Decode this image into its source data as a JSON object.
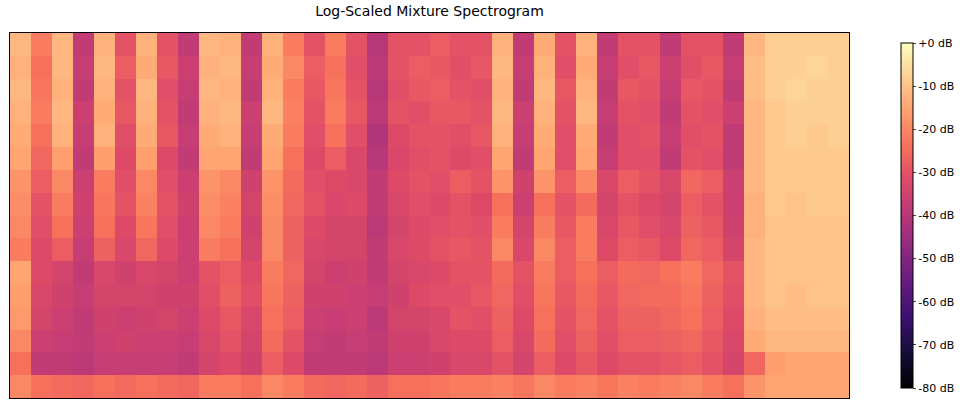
{
  "chart_data": {
    "type": "heatmap",
    "title": "Log-Scaled Mixture Spectrogram",
    "tick_labels": false,
    "grid": false,
    "colorbar_range": [
      -80,
      0
    ],
    "colorbar_ticks": [
      {
        "value": 0,
        "label": "+0 dB"
      },
      {
        "value": -10,
        "label": "-10 dB"
      },
      {
        "value": -20,
        "label": "-20 dB"
      },
      {
        "value": -30,
        "label": "-30 dB"
      },
      {
        "value": -40,
        "label": "-40 dB"
      },
      {
        "value": -50,
        "label": "-50 dB"
      },
      {
        "value": -60,
        "label": "-60 dB"
      },
      {
        "value": -70,
        "label": "-70 dB"
      },
      {
        "value": -80,
        "label": "-80 dB"
      }
    ],
    "cells": [
      [
        -12,
        -22,
        -12,
        -38,
        -13,
        -30,
        -13,
        -30,
        -38,
        -12,
        -13,
        -38,
        -13,
        -22,
        -30,
        -22,
        -30,
        -40,
        -30,
        -30,
        -28,
        -30,
        -30,
        -13,
        -38,
        -14,
        -30,
        -13,
        -38,
        -30,
        -30,
        -38,
        -30,
        -30,
        -38,
        -12,
        -8,
        -8,
        -8,
        -8
      ],
      [
        -13,
        -24,
        -12,
        -37,
        -12,
        -28,
        -14,
        -29,
        -36,
        -13,
        -12,
        -37,
        -14,
        -20,
        -28,
        -24,
        -31,
        -39,
        -30,
        -28,
        -29,
        -31,
        -29,
        -12,
        -37,
        -13,
        -31,
        -14,
        -37,
        -31,
        -29,
        -36,
        -31,
        -29,
        -37,
        -11,
        -8,
        -8,
        -7,
        -8
      ],
      [
        -12,
        -23,
        -13,
        -38,
        -13,
        -30,
        -12,
        -31,
        -37,
        -12,
        -13,
        -38,
        -13,
        -22,
        -29,
        -23,
        -30,
        -40,
        -31,
        -29,
        -28,
        -30,
        -31,
        -13,
        -38,
        -12,
        -29,
        -13,
        -38,
        -29,
        -30,
        -37,
        -29,
        -30,
        -38,
        -11,
        -8,
        -7,
        -8,
        -8
      ],
      [
        -13,
        -22,
        -12,
        -36,
        -14,
        -29,
        -13,
        -30,
        -38,
        -13,
        -12,
        -36,
        -12,
        -21,
        -30,
        -22,
        -29,
        -39,
        -30,
        -31,
        -29,
        -29,
        -30,
        -12,
        -36,
        -13,
        -30,
        -12,
        -37,
        -30,
        -31,
        -38,
        -30,
        -31,
        -36,
        -12,
        -9,
        -8,
        -8,
        -8
      ],
      [
        -14,
        -24,
        -13,
        -37,
        -13,
        -31,
        -14,
        -29,
        -37,
        -14,
        -13,
        -37,
        -14,
        -22,
        -31,
        -24,
        -31,
        -41,
        -32,
        -30,
        -30,
        -31,
        -29,
        -13,
        -37,
        -14,
        -31,
        -14,
        -38,
        -31,
        -30,
        -37,
        -31,
        -30,
        -38,
        -12,
        -9,
        -8,
        -9,
        -8
      ],
      [
        -15,
        -26,
        -16,
        -38,
        -16,
        -32,
        -16,
        -32,
        -38,
        -15,
        -15,
        -38,
        -15,
        -24,
        -32,
        -28,
        -33,
        -40,
        -33,
        -31,
        -30,
        -32,
        -31,
        -15,
        -38,
        -15,
        -31,
        -15,
        -37,
        -31,
        -31,
        -38,
        -30,
        -31,
        -38,
        -12,
        -9,
        -9,
        -9,
        -9
      ],
      [
        -18,
        -28,
        -20,
        -36,
        -22,
        -31,
        -20,
        -31,
        -36,
        -18,
        -20,
        -35,
        -18,
        -25,
        -31,
        -32,
        -33,
        -38,
        -32,
        -30,
        -31,
        -28,
        -30,
        -18,
        -35,
        -18,
        -28,
        -20,
        -33,
        -28,
        -30,
        -33,
        -26,
        -28,
        -36,
        -12,
        -9,
        -9,
        -9,
        -9
      ],
      [
        -19,
        -30,
        -22,
        -35,
        -23,
        -30,
        -21,
        -30,
        -35,
        -19,
        -21,
        -34,
        -19,
        -26,
        -30,
        -33,
        -32,
        -38,
        -33,
        -31,
        -32,
        -30,
        -32,
        -24,
        -36,
        -24,
        -30,
        -25,
        -34,
        -30,
        -32,
        -34,
        -28,
        -30,
        -36,
        -13,
        -9,
        -10,
        -9,
        -9
      ],
      [
        -20,
        -31,
        -24,
        -36,
        -24,
        -32,
        -23,
        -31,
        -36,
        -20,
        -22,
        -35,
        -20,
        -27,
        -32,
        -34,
        -34,
        -39,
        -34,
        -32,
        -31,
        -30,
        -31,
        -22,
        -34,
        -22,
        -29,
        -22,
        -33,
        -29,
        -31,
        -33,
        -27,
        -29,
        -35,
        -13,
        -10,
        -10,
        -10,
        -10
      ],
      [
        -22,
        -32,
        -28,
        -37,
        -27,
        -33,
        -26,
        -32,
        -36,
        -22,
        -24,
        -34,
        -20,
        -27,
        -33,
        -34,
        -34,
        -38,
        -33,
        -32,
        -30,
        -29,
        -30,
        -20,
        -33,
        -20,
        -28,
        -22,
        -32,
        -28,
        -29,
        -32,
        -26,
        -28,
        -34,
        -12,
        -10,
        -10,
        -10,
        -10
      ],
      [
        -15,
        -32,
        -34,
        -38,
        -33,
        -35,
        -33,
        -34,
        -36,
        -30,
        -28,
        -32,
        -22,
        -26,
        -34,
        -36,
        -35,
        -38,
        -34,
        -33,
        -32,
        -30,
        -30,
        -25,
        -30,
        -22,
        -28,
        -24,
        -28,
        -25,
        -26,
        -24,
        -22,
        -26,
        -30,
        -12,
        -10,
        -10,
        -10,
        -10
      ],
      [
        -16,
        -33,
        -35,
        -37,
        -34,
        -34,
        -34,
        -35,
        -35,
        -31,
        -27,
        -31,
        -23,
        -27,
        -35,
        -35,
        -36,
        -37,
        -35,
        -32,
        -31,
        -31,
        -29,
        -26,
        -31,
        -23,
        -29,
        -25,
        -29,
        -26,
        -25,
        -25,
        -23,
        -27,
        -31,
        -12,
        -10,
        -11,
        -10,
        -10
      ],
      [
        -17,
        -34,
        -36,
        -38,
        -35,
        -36,
        -35,
        -34,
        -36,
        -32,
        -29,
        -33,
        -24,
        -28,
        -36,
        -37,
        -36,
        -39,
        -34,
        -34,
        -33,
        -30,
        -31,
        -27,
        -32,
        -24,
        -30,
        -26,
        -30,
        -27,
        -27,
        -26,
        -24,
        -28,
        -32,
        -13,
        -11,
        -11,
        -11,
        -11
      ],
      [
        -20,
        -36,
        -37,
        -38,
        -36,
        -35,
        -36,
        -36,
        -37,
        -33,
        -30,
        -34,
        -25,
        -30,
        -37,
        -38,
        -37,
        -38,
        -35,
        -35,
        -33,
        -32,
        -32,
        -28,
        -33,
        -25,
        -31,
        -27,
        -31,
        -28,
        -28,
        -27,
        -26,
        -29,
        -33,
        -14,
        -12,
        -12,
        -12,
        -12
      ],
      [
        -24,
        -38,
        -38,
        -39,
        -37,
        -37,
        -37,
        -37,
        -38,
        -34,
        -32,
        -35,
        -28,
        -32,
        -38,
        -38,
        -38,
        -39,
        -36,
        -36,
        -35,
        -33,
        -33,
        -30,
        -34,
        -28,
        -32,
        -29,
        -32,
        -30,
        -30,
        -29,
        -28,
        -30,
        -34,
        -26,
        -16,
        -15,
        -15,
        -15
      ],
      [
        -20,
        -24,
        -25,
        -26,
        -24,
        -25,
        -24,
        -25,
        -26,
        -22,
        -22,
        -24,
        -20,
        -22,
        -25,
        -26,
        -25,
        -27,
        -24,
        -24,
        -23,
        -22,
        -22,
        -21,
        -23,
        -20,
        -22,
        -21,
        -23,
        -21,
        -22,
        -21,
        -20,
        -22,
        -24,
        -18,
        -15,
        -15,
        -15,
        -15
      ]
    ]
  }
}
